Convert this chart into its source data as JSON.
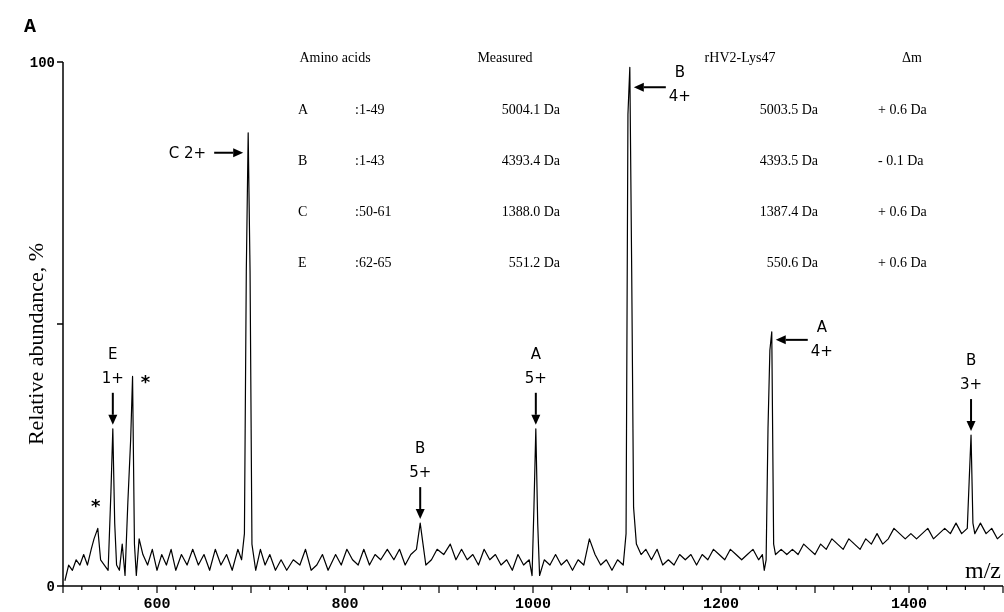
{
  "chart_data": {
    "type": "line",
    "title": "A",
    "xlabel": "m/z",
    "ylabel": "Relative abundance, %",
    "xlim": [
      500,
      1500
    ],
    "ylim": [
      0,
      100
    ],
    "xticks": [
      {
        "value": 500,
        "label": null
      },
      {
        "value": 520,
        "label": null
      },
      {
        "value": 540,
        "label": null
      },
      {
        "value": 560,
        "label": null
      },
      {
        "value": 580,
        "label": null
      },
      600,
      {
        "value": 620,
        "label": null
      },
      {
        "value": 640,
        "label": null
      },
      {
        "value": 660,
        "label": null
      },
      {
        "value": 680,
        "label": null
      },
      {
        "value": 700,
        "label": null
      },
      {
        "value": 720,
        "label": null
      },
      {
        "value": 740,
        "label": null
      },
      {
        "value": 760,
        "label": null
      },
      {
        "value": 780,
        "label": null
      },
      800,
      {
        "value": 820,
        "label": null
      },
      {
        "value": 840,
        "label": null
      },
      {
        "value": 860,
        "label": null
      },
      {
        "value": 880,
        "label": null
      },
      {
        "value": 900,
        "label": null
      },
      {
        "value": 920,
        "label": null
      },
      {
        "value": 940,
        "label": null
      },
      {
        "value": 960,
        "label": null
      },
      {
        "value": 980,
        "label": null
      },
      1000,
      {
        "value": 1020,
        "label": null
      },
      {
        "value": 1040,
        "label": null
      },
      {
        "value": 1060,
        "label": null
      },
      {
        "value": 1080,
        "label": null
      },
      {
        "value": 1100,
        "label": null
      },
      {
        "value": 1120,
        "label": null
      },
      {
        "value": 1140,
        "label": null
      },
      {
        "value": 1160,
        "label": null
      },
      {
        "value": 1180,
        "label": null
      },
      1200,
      {
        "value": 1220,
        "label": null
      },
      {
        "value": 1240,
        "label": null
      },
      {
        "value": 1260,
        "label": null
      },
      {
        "value": 1280,
        "label": null
      },
      {
        "value": 1300,
        "label": null
      },
      {
        "value": 1320,
        "label": null
      },
      {
        "value": 1340,
        "label": null
      },
      {
        "value": 1360,
        "label": null
      },
      {
        "value": 1380,
        "label": null
      },
      1400,
      {
        "value": 1420,
        "label": null
      },
      {
        "value": 1440,
        "label": null
      },
      {
        "value": 1460,
        "label": null
      },
      {
        "value": 1480,
        "label": null
      },
      {
        "value": 1500,
        "label": null
      }
    ],
    "yticks": [
      0,
      {
        "value": 50,
        "label": null
      },
      100
    ],
    "marker": "none",
    "line_style": "solid",
    "series": [
      {
        "color": "#000000",
        "x": [
          502,
          506,
          510,
          514,
          518,
          522,
          526,
          530,
          533,
          537,
          540,
          544,
          548,
          551,
          553,
          555,
          557,
          560,
          563,
          566,
          569,
          572,
          574,
          576,
          578,
          581,
          585,
          590,
          595,
          600,
          605,
          610,
          615,
          620,
          626,
          632,
          638,
          644,
          650,
          656,
          662,
          668,
          674,
          680,
          686,
          690,
          693,
          695,
          697,
          699,
          701,
          705,
          710,
          715,
          720,
          726,
          732,
          738,
          745,
          752,
          758,
          764,
          770,
          776,
          782,
          790,
          796,
          802,
          808,
          814,
          820,
          826,
          832,
          838,
          845,
          852,
          858,
          864,
          870,
          876,
          880,
          883,
          886,
          892,
          898,
          905,
          912,
          918,
          924,
          930,
          936,
          942,
          948,
          954,
          960,
          966,
          972,
          978,
          984,
          990,
          996,
          999,
          1001,
          1003,
          1005,
          1007,
          1012,
          1018,
          1024,
          1030,
          1036,
          1042,
          1048,
          1054,
          1060,
          1066,
          1072,
          1078,
          1084,
          1090,
          1096,
          1099,
          1101,
          1103,
          1105,
          1107,
          1110,
          1115,
          1120,
          1126,
          1132,
          1138,
          1144,
          1150,
          1156,
          1162,
          1168,
          1174,
          1180,
          1186,
          1192,
          1198,
          1204,
          1210,
          1216,
          1222,
          1228,
          1234,
          1240,
          1244,
          1246,
          1248,
          1250,
          1252,
          1254,
          1256,
          1258,
          1264,
          1270,
          1276,
          1282,
          1288,
          1294,
          1300,
          1306,
          1312,
          1318,
          1324,
          1330,
          1336,
          1342,
          1348,
          1354,
          1360,
          1366,
          1372,
          1378,
          1384,
          1390,
          1396,
          1402,
          1408,
          1414,
          1420,
          1426,
          1432,
          1438,
          1444,
          1450,
          1456,
          1462,
          1464,
          1466,
          1468,
          1470,
          1476,
          1482,
          1488,
          1494,
          1500
        ],
        "values": [
          1,
          4,
          3,
          5,
          4,
          6,
          4,
          7,
          9,
          11,
          5,
          4,
          3,
          18,
          30,
          12,
          4,
          3,
          8,
          2,
          16,
          28,
          40,
          8,
          2,
          9,
          6,
          4,
          7,
          3,
          6,
          4,
          7,
          3,
          6,
          4,
          7,
          4,
          6,
          3,
          7,
          4,
          6,
          3,
          7,
          5,
          10,
          60,
          86.5,
          60,
          8,
          3,
          7,
          4,
          6,
          3,
          5,
          3,
          5,
          4,
          7,
          3,
          4,
          6,
          3,
          6,
          4,
          7,
          5,
          4,
          7,
          4,
          6,
          5,
          7,
          5,
          7,
          4,
          6,
          7,
          12,
          8,
          4,
          5,
          7,
          6,
          8,
          5,
          7,
          5,
          6,
          4,
          7,
          5,
          6,
          4,
          5,
          3,
          6,
          4,
          5,
          2,
          15,
          30,
          12,
          2,
          5,
          4,
          6,
          4,
          5,
          3,
          5,
          4,
          9,
          6,
          4,
          5,
          3,
          5,
          4,
          10,
          90,
          99,
          60,
          15,
          8,
          6,
          7,
          5,
          7,
          4,
          5,
          4,
          6,
          5,
          6,
          4,
          6,
          5,
          7,
          6,
          5,
          7,
          6,
          5,
          6,
          7,
          5,
          6,
          3,
          5,
          30,
          45,
          48.5,
          8,
          6,
          7,
          6,
          7,
          6,
          8,
          7,
          6,
          8,
          7,
          9,
          8,
          7,
          9,
          8,
          7,
          9,
          8,
          10,
          8,
          9,
          11,
          10,
          9,
          10,
          9,
          10,
          11,
          9,
          10,
          11,
          10,
          12,
          10,
          11,
          20,
          28.8,
          12,
          10,
          12,
          10,
          11,
          9,
          10
        ]
      }
    ],
    "annotations": [
      {
        "text": "*",
        "x": 537,
        "y": 11
      },
      {
        "text": "E\n1+",
        "x": 553,
        "y": 30
      },
      {
        "text": "*",
        "x": 574,
        "y": 40
      },
      {
        "text": "C 2+",
        "x": 697,
        "y": 86.5
      },
      {
        "text": "B\n5+",
        "x": 880,
        "y": 12
      },
      {
        "text": "A\n5+",
        "x": 1003,
        "y": 30
      },
      {
        "text": "B\n4+",
        "x": 1103,
        "y": 99
      },
      {
        "text": "A\n4+",
        "x": 1254,
        "y": 48.5
      },
      {
        "text": "B\n3+",
        "x": 1466,
        "y": 28.8
      },
      "Amino acids",
      "Measured",
      "rHV2-Lys47",
      "Δm",
      "A",
      ":1-49",
      "5004.1 Da",
      "5003.5 Da",
      "+ 0.6 Da",
      "B",
      ":1-43",
      "4393.4 Da",
      "4393.5 Da",
      "-  0.1 Da",
      "C",
      ":50-61",
      "1388.0 Da",
      "1387.4 Da",
      "+ 0.6 Da",
      "E",
      ":62-65",
      "551.2 Da",
      "550.6 Da",
      "+ 0.6 Da"
    ]
  }
}
